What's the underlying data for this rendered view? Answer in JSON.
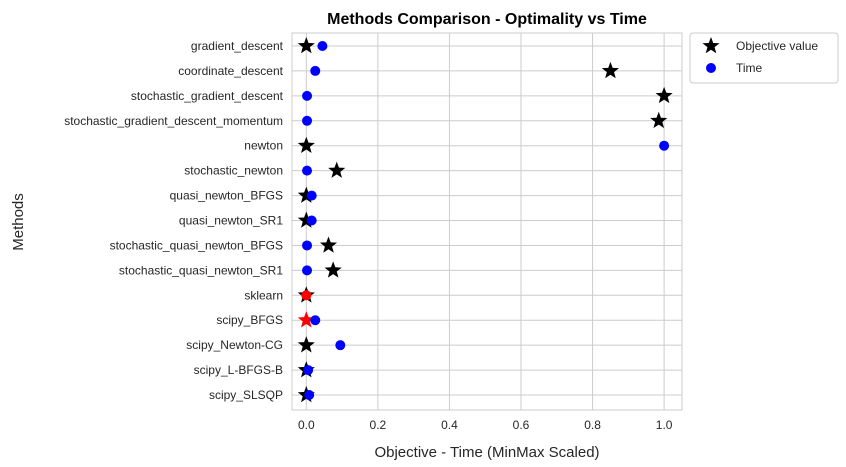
{
  "chart_data": {
    "type": "scatter",
    "title": "Methods Comparison - Optimality vs Time",
    "xlabel": "Objective - Time (MinMax Scaled)",
    "ylabel": "Methods",
    "xlim": [
      -0.04,
      1.05
    ],
    "xticks": [
      "0.0",
      "0.2",
      "0.4",
      "0.6",
      "0.8",
      "1.0"
    ],
    "xtick_values": [
      0.0,
      0.2,
      0.4,
      0.6,
      0.8,
      1.0
    ],
    "grid": true,
    "legend_position": "outside-top-right",
    "categories": [
      "gradient_descent",
      "coordinate_descent",
      "stochastic_gradient_descent",
      "stochastic_gradient_descent_momentum",
      "newton",
      "stochastic_newton",
      "quasi_newton_BFGS",
      "quasi_newton_SR1",
      "stochastic_quasi_newton_BFGS",
      "stochastic_quasi_newton_SR1",
      "sklearn",
      "scipy_BFGS",
      "scipy_Newton-CG",
      "scipy_L-BFGS-B",
      "scipy_SLSQP"
    ],
    "series": [
      {
        "name": "Objective value",
        "marker": "star",
        "color": "#000000",
        "values": [
          0.0,
          0.85,
          1.0,
          0.985,
          0.0,
          0.085,
          0.0,
          0.0,
          0.062,
          0.075,
          0.0,
          0.0,
          0.0,
          0.0,
          0.0
        ],
        "highlight_colors": {
          "11": "#ff0000"
        }
      },
      {
        "name": "Time",
        "marker": "circle",
        "color": "#0000ff",
        "values": [
          0.045,
          0.025,
          0.002,
          0.002,
          1.0,
          0.002,
          0.015,
          0.015,
          0.002,
          0.002,
          0.0,
          0.025,
          0.095,
          0.005,
          0.008
        ],
        "highlight_colors": {
          "10": "#ff0000"
        }
      }
    ]
  }
}
